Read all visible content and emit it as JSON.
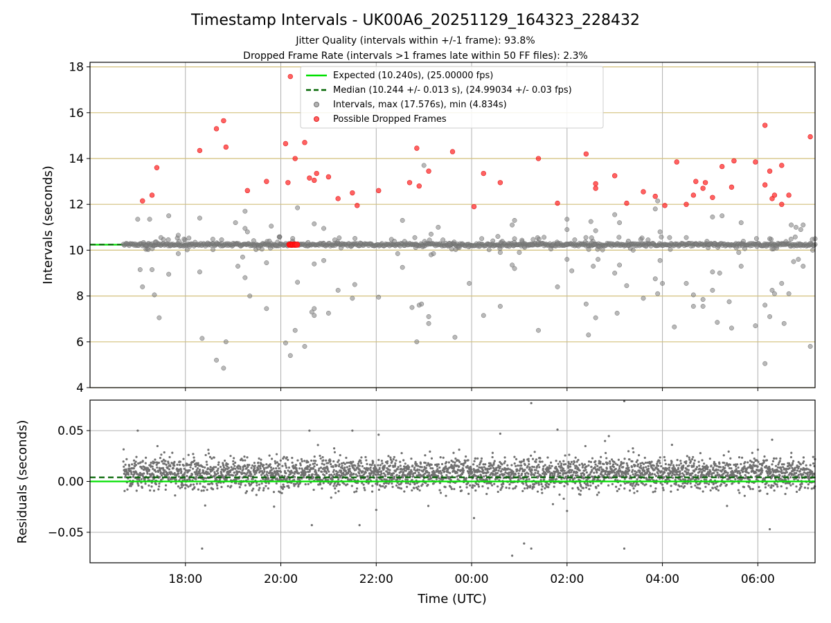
{
  "chart_data": {
    "type": "scatter",
    "title": "Timestamp Intervals - UK00A6_20251129_164323_228432",
    "subtitle_lines": [
      "Jitter Quality (intervals within +/-1 frame): 93.8%",
      "Dropped Frame Rate (intervals >1 frames late within 50 FF files): 2.3%"
    ],
    "xlabel": "Time (UTC)",
    "x_unit": "hours after 16:00 UTC on 2025-11-29",
    "xlim": [
      0.0,
      15.2
    ],
    "xticks": [
      {
        "value": 2,
        "label": "18:00"
      },
      {
        "value": 4,
        "label": "20:00"
      },
      {
        "value": 6,
        "label": "22:00"
      },
      {
        "value": 8,
        "label": "00:00"
      },
      {
        "value": 10,
        "label": "02:00"
      },
      {
        "value": 12,
        "label": "04:00"
      },
      {
        "value": 14,
        "label": "06:00"
      }
    ],
    "colors": {
      "expected": "#00e000",
      "median": "#006400",
      "intervals": "#808080",
      "dropped": "#ff2020",
      "hgrid_top": "#d2bf7a",
      "grid": "#b0b0b0"
    },
    "top": {
      "ylabel": "Intervals (seconds)",
      "ylim": [
        4,
        18.2
      ],
      "yticks": [
        4,
        6,
        8,
        10,
        12,
        14,
        16,
        18
      ],
      "expected": 10.24,
      "median": 10.244,
      "series_start_x": 0.7,
      "legend": [
        "Expected (10.240s), (25.00000 fps)",
        "Median (10.244 +/- 0.013 s), (24.99034 +/- 0.03 fps)",
        "Intervals, max (17.576s), min (4.834s)",
        "Possible Dropped Frames"
      ],
      "dropped": [
        [
          1.1,
          12.15
        ],
        [
          1.3,
          12.4
        ],
        [
          1.4,
          13.6
        ],
        [
          2.3,
          14.35
        ],
        [
          2.65,
          15.3
        ],
        [
          2.8,
          15.65
        ],
        [
          2.85,
          14.5
        ],
        [
          3.3,
          12.6
        ],
        [
          3.7,
          13.0
        ],
        [
          4.1,
          14.65
        ],
        [
          4.15,
          12.95
        ],
        [
          4.2,
          17.58
        ],
        [
          4.3,
          14.0
        ],
        [
          4.5,
          14.7
        ],
        [
          4.6,
          13.15
        ],
        [
          4.7,
          13.05
        ],
        [
          4.75,
          13.35
        ],
        [
          5.0,
          13.2
        ],
        [
          5.2,
          12.25
        ],
        [
          5.5,
          12.5
        ],
        [
          5.6,
          11.95
        ],
        [
          6.05,
          12.6
        ],
        [
          6.7,
          12.95
        ],
        [
          6.85,
          14.45
        ],
        [
          6.9,
          12.8
        ],
        [
          7.1,
          13.45
        ],
        [
          7.6,
          14.3
        ],
        [
          8.05,
          11.9
        ],
        [
          8.25,
          13.35
        ],
        [
          8.6,
          12.95
        ],
        [
          9.4,
          14.0
        ],
        [
          9.8,
          12.05
        ],
        [
          10.4,
          14.2
        ],
        [
          10.6,
          12.9
        ],
        [
          10.6,
          12.7
        ],
        [
          11.0,
          13.25
        ],
        [
          11.25,
          12.05
        ],
        [
          11.6,
          12.55
        ],
        [
          11.85,
          12.35
        ],
        [
          12.05,
          11.95
        ],
        [
          12.3,
          13.85
        ],
        [
          12.5,
          12.0
        ],
        [
          12.65,
          12.4
        ],
        [
          12.7,
          13.0
        ],
        [
          12.85,
          12.7
        ],
        [
          12.9,
          12.95
        ],
        [
          13.05,
          12.3
        ],
        [
          13.25,
          13.65
        ],
        [
          13.45,
          12.75
        ],
        [
          13.5,
          13.9
        ],
        [
          13.95,
          13.85
        ],
        [
          14.15,
          12.85
        ],
        [
          14.15,
          15.45
        ],
        [
          14.25,
          13.45
        ],
        [
          14.3,
          12.25
        ],
        [
          14.35,
          12.4
        ],
        [
          14.5,
          12.0
        ],
        [
          14.5,
          13.7
        ],
        [
          14.65,
          12.4
        ],
        [
          15.1,
          14.95
        ]
      ],
      "dropped_cluster_x": [
        4.18,
        4.34
      ],
      "dropped_cluster_y": 10.24,
      "grey": [
        [
          1.0,
          11.35
        ],
        [
          1.05,
          9.15
        ],
        [
          1.1,
          8.4
        ],
        [
          1.25,
          11.35
        ],
        [
          1.3,
          9.15
        ],
        [
          1.35,
          8.05
        ],
        [
          1.45,
          7.05
        ],
        [
          1.65,
          8.95
        ],
        [
          1.65,
          11.5
        ],
        [
          1.85,
          9.85
        ],
        [
          1.85,
          10.65
        ],
        [
          2.3,
          11.4
        ],
        [
          2.3,
          9.05
        ],
        [
          2.35,
          6.15
        ],
        [
          2.65,
          5.2
        ],
        [
          2.8,
          4.85
        ],
        [
          2.85,
          6.0
        ],
        [
          3.0,
          10.3
        ],
        [
          3.05,
          11.2
        ],
        [
          3.1,
          9.3
        ],
        [
          3.25,
          10.95
        ],
        [
          3.25,
          11.7
        ],
        [
          3.2,
          9.7
        ],
        [
          3.3,
          10.8
        ],
        [
          3.25,
          8.8
        ],
        [
          3.35,
          8.0
        ],
        [
          3.7,
          7.45
        ],
        [
          3.7,
          9.45
        ],
        [
          3.8,
          11.05
        ],
        [
          4.1,
          5.95
        ],
        [
          4.2,
          5.4
        ],
        [
          4.3,
          6.5
        ],
        [
          4.35,
          11.85
        ],
        [
          4.35,
          8.6
        ],
        [
          4.5,
          5.8
        ],
        [
          4.65,
          7.3
        ],
        [
          4.7,
          7.45
        ],
        [
          4.7,
          7.15
        ],
        [
          4.7,
          9.4
        ],
        [
          4.7,
          11.15
        ],
        [
          4.9,
          9.55
        ],
        [
          4.9,
          10.95
        ],
        [
          5.0,
          7.25
        ],
        [
          5.2,
          8.25
        ],
        [
          5.5,
          7.9
        ],
        [
          5.55,
          8.5
        ],
        [
          6.05,
          7.95
        ],
        [
          6.45,
          9.85
        ],
        [
          6.55,
          9.25
        ],
        [
          6.55,
          11.3
        ],
        [
          6.75,
          7.5
        ],
        [
          6.85,
          6.0
        ],
        [
          6.9,
          7.6
        ],
        [
          6.95,
          7.65
        ],
        [
          7.0,
          13.7
        ],
        [
          7.1,
          6.8
        ],
        [
          7.1,
          7.1
        ],
        [
          7.15,
          9.8
        ],
        [
          7.15,
          10.7
        ],
        [
          7.2,
          9.85
        ],
        [
          7.3,
          11.0
        ],
        [
          7.65,
          6.2
        ],
        [
          7.95,
          8.55
        ],
        [
          8.25,
          7.15
        ],
        [
          8.55,
          10.6
        ],
        [
          8.6,
          9.9
        ],
        [
          8.6,
          7.55
        ],
        [
          8.85,
          9.35
        ],
        [
          8.9,
          9.2
        ],
        [
          8.85,
          11.1
        ],
        [
          8.9,
          11.3
        ],
        [
          8.9,
          10.5
        ],
        [
          9.0,
          9.9
        ],
        [
          9.4,
          6.5
        ],
        [
          9.8,
          8.4
        ],
        [
          10.0,
          11.35
        ],
        [
          10.0,
          10.9
        ],
        [
          10.0,
          9.6
        ],
        [
          10.1,
          9.1
        ],
        [
          10.4,
          7.65
        ],
        [
          10.45,
          6.3
        ],
        [
          10.5,
          11.25
        ],
        [
          10.55,
          9.3
        ],
        [
          10.6,
          10.85
        ],
        [
          10.6,
          7.05
        ],
        [
          10.65,
          9.6
        ],
        [
          11.0,
          9.0
        ],
        [
          11.0,
          11.55
        ],
        [
          11.05,
          7.25
        ],
        [
          11.1,
          11.2
        ],
        [
          11.1,
          9.35
        ],
        [
          11.25,
          8.45
        ],
        [
          11.6,
          7.9
        ],
        [
          11.7,
          10.45
        ],
        [
          11.85,
          11.8
        ],
        [
          11.85,
          8.75
        ],
        [
          11.9,
          12.15
        ],
        [
          11.9,
          8.1
        ],
        [
          11.95,
          10.8
        ],
        [
          11.95,
          9.55
        ],
        [
          12.0,
          8.55
        ],
        [
          12.15,
          10.55
        ],
        [
          12.25,
          6.65
        ],
        [
          12.5,
          8.55
        ],
        [
          12.5,
          10.55
        ],
        [
          12.65,
          8.05
        ],
        [
          12.65,
          7.55
        ],
        [
          12.85,
          7.85
        ],
        [
          12.85,
          7.55
        ],
        [
          13.05,
          11.45
        ],
        [
          13.05,
          9.05
        ],
        [
          13.05,
          8.25
        ],
        [
          13.15,
          6.85
        ],
        [
          13.2,
          9.0
        ],
        [
          13.25,
          11.5
        ],
        [
          13.4,
          7.75
        ],
        [
          13.45,
          6.6
        ],
        [
          13.6,
          9.9
        ],
        [
          13.65,
          11.2
        ],
        [
          13.65,
          9.3
        ],
        [
          13.95,
          6.7
        ],
        [
          14.15,
          7.6
        ],
        [
          14.15,
          5.05
        ],
        [
          14.25,
          7.1
        ],
        [
          14.25,
          10.5
        ],
        [
          14.3,
          10.05
        ],
        [
          14.3,
          8.25
        ],
        [
          14.35,
          8.1
        ],
        [
          14.55,
          6.8
        ],
        [
          14.5,
          8.55
        ],
        [
          14.65,
          8.1
        ],
        [
          14.7,
          11.1
        ],
        [
          14.75,
          9.5
        ],
        [
          14.8,
          11.0
        ],
        [
          14.85,
          9.6
        ],
        [
          14.9,
          10.9
        ],
        [
          14.95,
          11.1
        ],
        [
          14.95,
          9.3
        ],
        [
          15.1,
          5.8
        ],
        [
          15.1,
          10.3
        ],
        [
          15.15,
          10.0
        ],
        [
          15.2,
          10.5
        ]
      ]
    },
    "bottom": {
      "ylabel": "Residuals (seconds)",
      "ylim": [
        -0.08,
        0.08
      ],
      "yticks": [
        -0.05,
        0.0,
        0.05
      ],
      "ytick_labels": [
        "−0.05",
        "0.00",
        "0.05"
      ],
      "expected": 0.0,
      "median": 0.004,
      "residual_band_center": 0.008,
      "residual_band_halfwidth": 0.018,
      "outliers": [
        [
          1.0,
          0.05
        ],
        [
          2.35,
          -0.066
        ],
        [
          4.6,
          0.05
        ],
        [
          4.65,
          -0.043
        ],
        [
          5.5,
          0.05
        ],
        [
          5.65,
          -0.043
        ],
        [
          6.05,
          0.046
        ],
        [
          6.0,
          -0.028
        ],
        [
          8.05,
          -0.036
        ],
        [
          8.6,
          0.047
        ],
        [
          8.85,
          -0.073
        ],
        [
          9.1,
          -0.061
        ],
        [
          9.25,
          0.077
        ],
        [
          9.25,
          -0.066
        ],
        [
          9.8,
          0.051
        ],
        [
          10.0,
          -0.029
        ],
        [
          11.2,
          0.079
        ],
        [
          11.2,
          -0.066
        ],
        [
          12.2,
          0.036
        ],
        [
          14.25,
          -0.047
        ],
        [
          14.3,
          0.041
        ]
      ]
    }
  }
}
